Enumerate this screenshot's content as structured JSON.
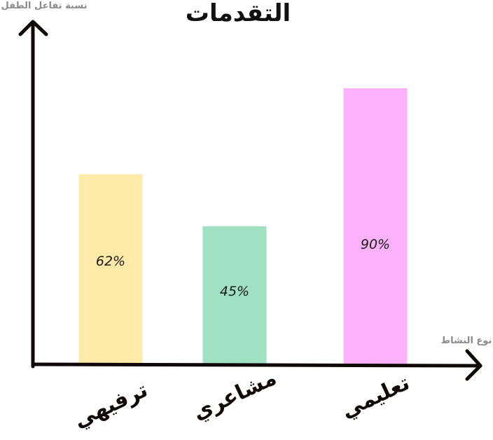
{
  "chart_data": {
    "type": "bar",
    "title": "التقدمات",
    "ylabel": "نسبة تفاعل الطفل",
    "xlabel": "نوع النشاط",
    "categories": [
      "ترفيهي",
      "مشاعري",
      "تعليمي"
    ],
    "values": [
      62,
      45,
      90
    ],
    "value_labels": [
      "62%",
      "45%",
      "90%"
    ],
    "ylim": [
      0,
      100
    ],
    "colors": [
      "#ffeaa8",
      "#a0e0c3",
      "#fdb2fb"
    ],
    "grid": false,
    "legend": "none"
  }
}
